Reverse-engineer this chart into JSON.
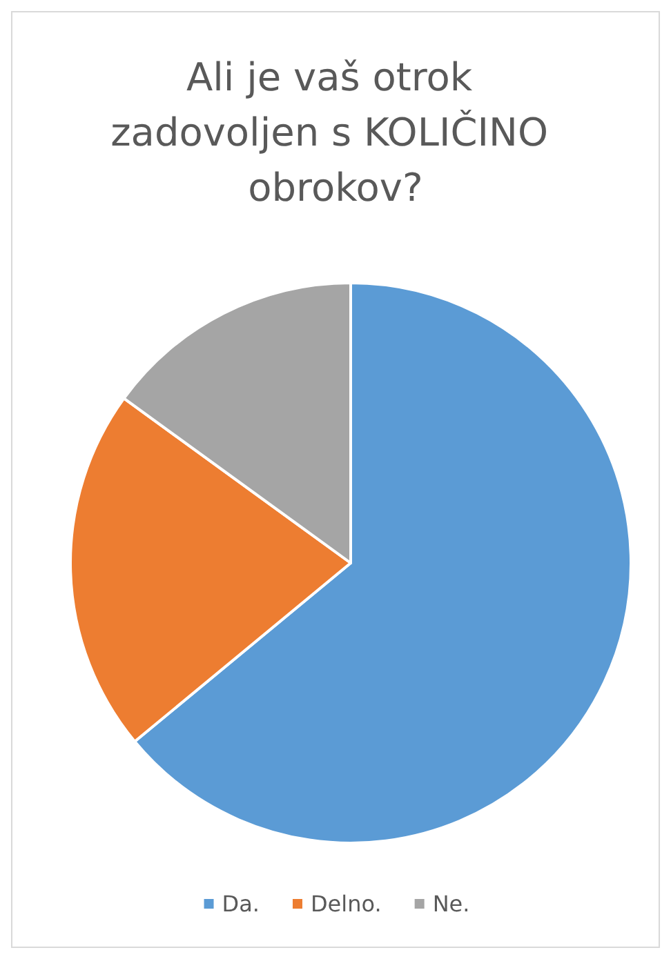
{
  "chart_data": {
    "type": "pie",
    "title": "Ali je vaš otrok zadovoljen s KOLIČINO obrokov?",
    "categories": [
      "Da.",
      "Delno.",
      "Ne."
    ],
    "values": [
      64,
      21,
      15
    ],
    "colors": [
      "#5b9bd5",
      "#ed7d31",
      "#a5a5a5"
    ],
    "legend": "bottom"
  }
}
